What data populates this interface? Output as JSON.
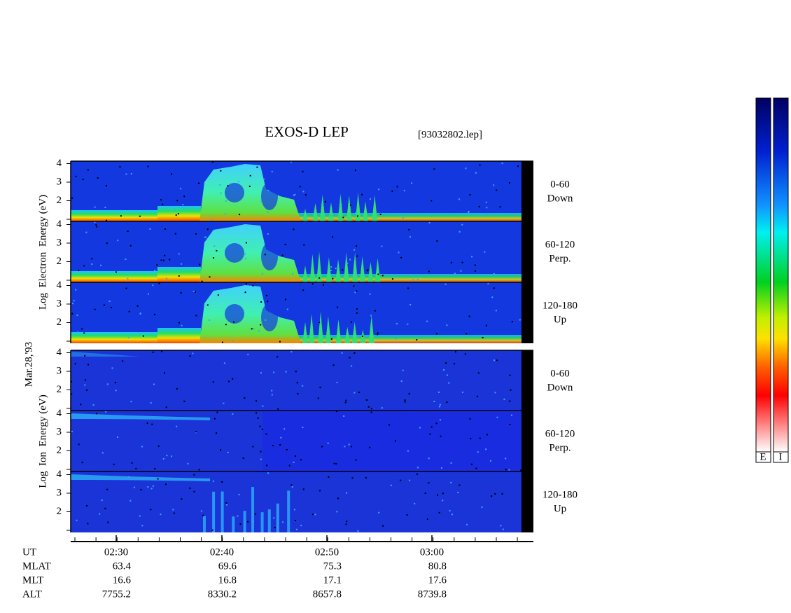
{
  "header": {
    "title": "EXOS-D LEP",
    "file": "[93032802.lep]"
  },
  "date": "Mar.28,'93",
  "groups": [
    {
      "axis_label": "Log  Electron  Energy (eV)",
      "panels": [
        {
          "angle": "0-60",
          "direction": "Down"
        },
        {
          "angle": "60-120",
          "direction": "Perp."
        },
        {
          "angle": "120-180",
          "direction": "Up"
        }
      ]
    },
    {
      "axis_label": "Log  Ion  Energy (eV)",
      "panels": [
        {
          "angle": "0-60",
          "direction": "Down"
        },
        {
          "angle": "60-120",
          "direction": "Perp."
        },
        {
          "angle": "120-180",
          "direction": "Up"
        }
      ]
    }
  ],
  "yticks": [
    2,
    3,
    4
  ],
  "orbit": {
    "row_labels": [
      "UT",
      "MLAT",
      "MLT",
      "ALT"
    ],
    "columns": [
      [
        "02:30",
        63.4,
        16.6,
        7755.2
      ],
      [
        "02:40",
        69.6,
        16.8,
        8330.2
      ],
      [
        "02:50",
        75.3,
        17.1,
        8657.8
      ],
      [
        "03:00",
        80.8,
        17.6,
        8739.8
      ]
    ]
  },
  "colorbar": {
    "labels": [
      "E",
      "I"
    ]
  }
}
